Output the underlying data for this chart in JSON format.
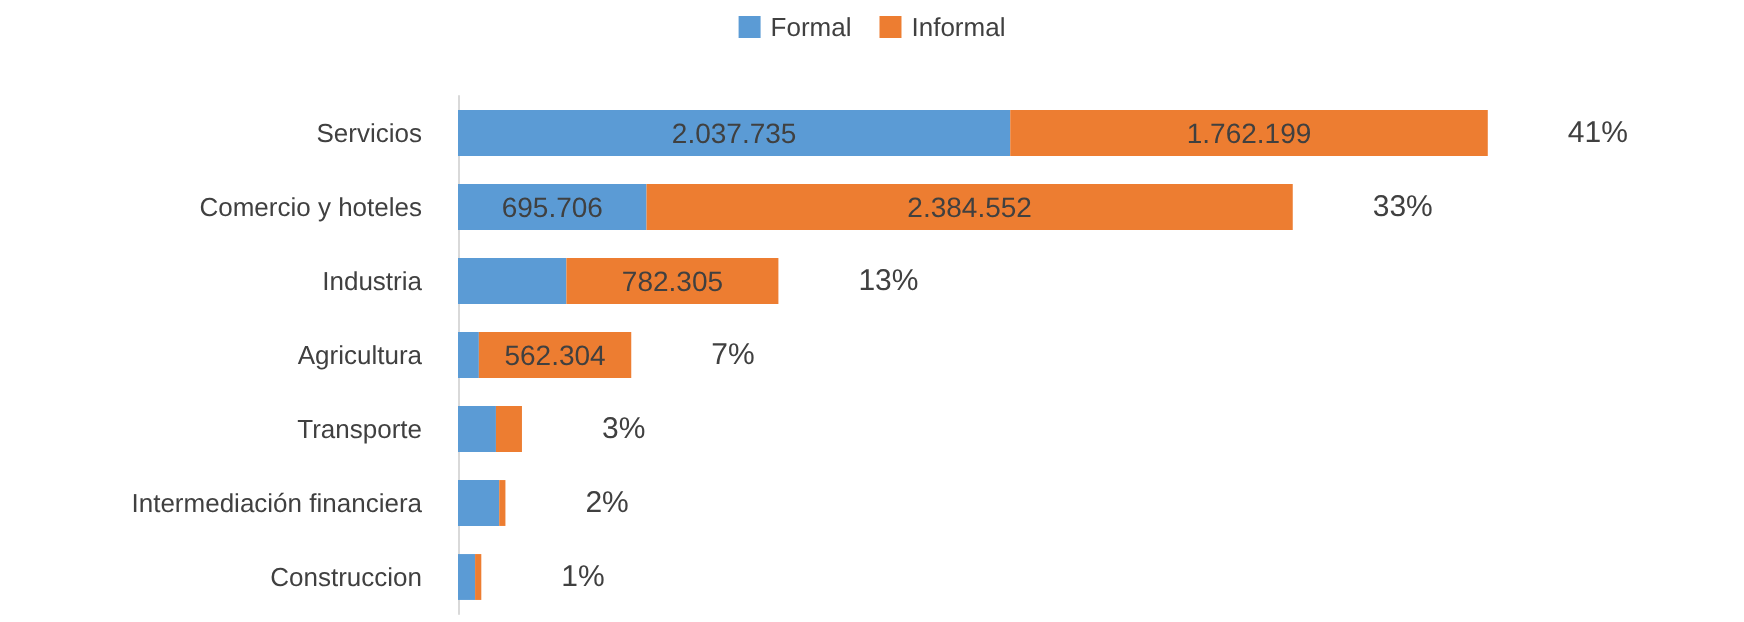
{
  "chart_data": {
    "type": "bar",
    "orientation": "horizontal",
    "stacked": true,
    "legend": "top",
    "categories": [
      "Servicios",
      "Comercio y hoteles",
      "Industria",
      "Agricultura",
      "Transporte",
      "Intermediación financiera",
      "Construccion"
    ],
    "series": [
      {
        "name": "Formal",
        "color": "#5b9bd5",
        "values": [
          2037735,
          695706,
          400000,
          77000,
          140000,
          152000,
          63000
        ],
        "value_labels": [
          "2.037.735",
          "695.706",
          null,
          null,
          null,
          null,
          null
        ]
      },
      {
        "name": "Informal",
        "color": "#ed7d31",
        "values": [
          1762199,
          2384552,
          782305,
          562304,
          96000,
          23000,
          23000
        ],
        "value_labels": [
          "1.762.199",
          "2.384.552",
          "782.305",
          "562.304",
          null,
          null,
          null
        ]
      }
    ],
    "annotations": [
      "41%",
      "33%",
      "13%",
      "7%",
      "3%",
      "2%",
      "1%"
    ]
  }
}
